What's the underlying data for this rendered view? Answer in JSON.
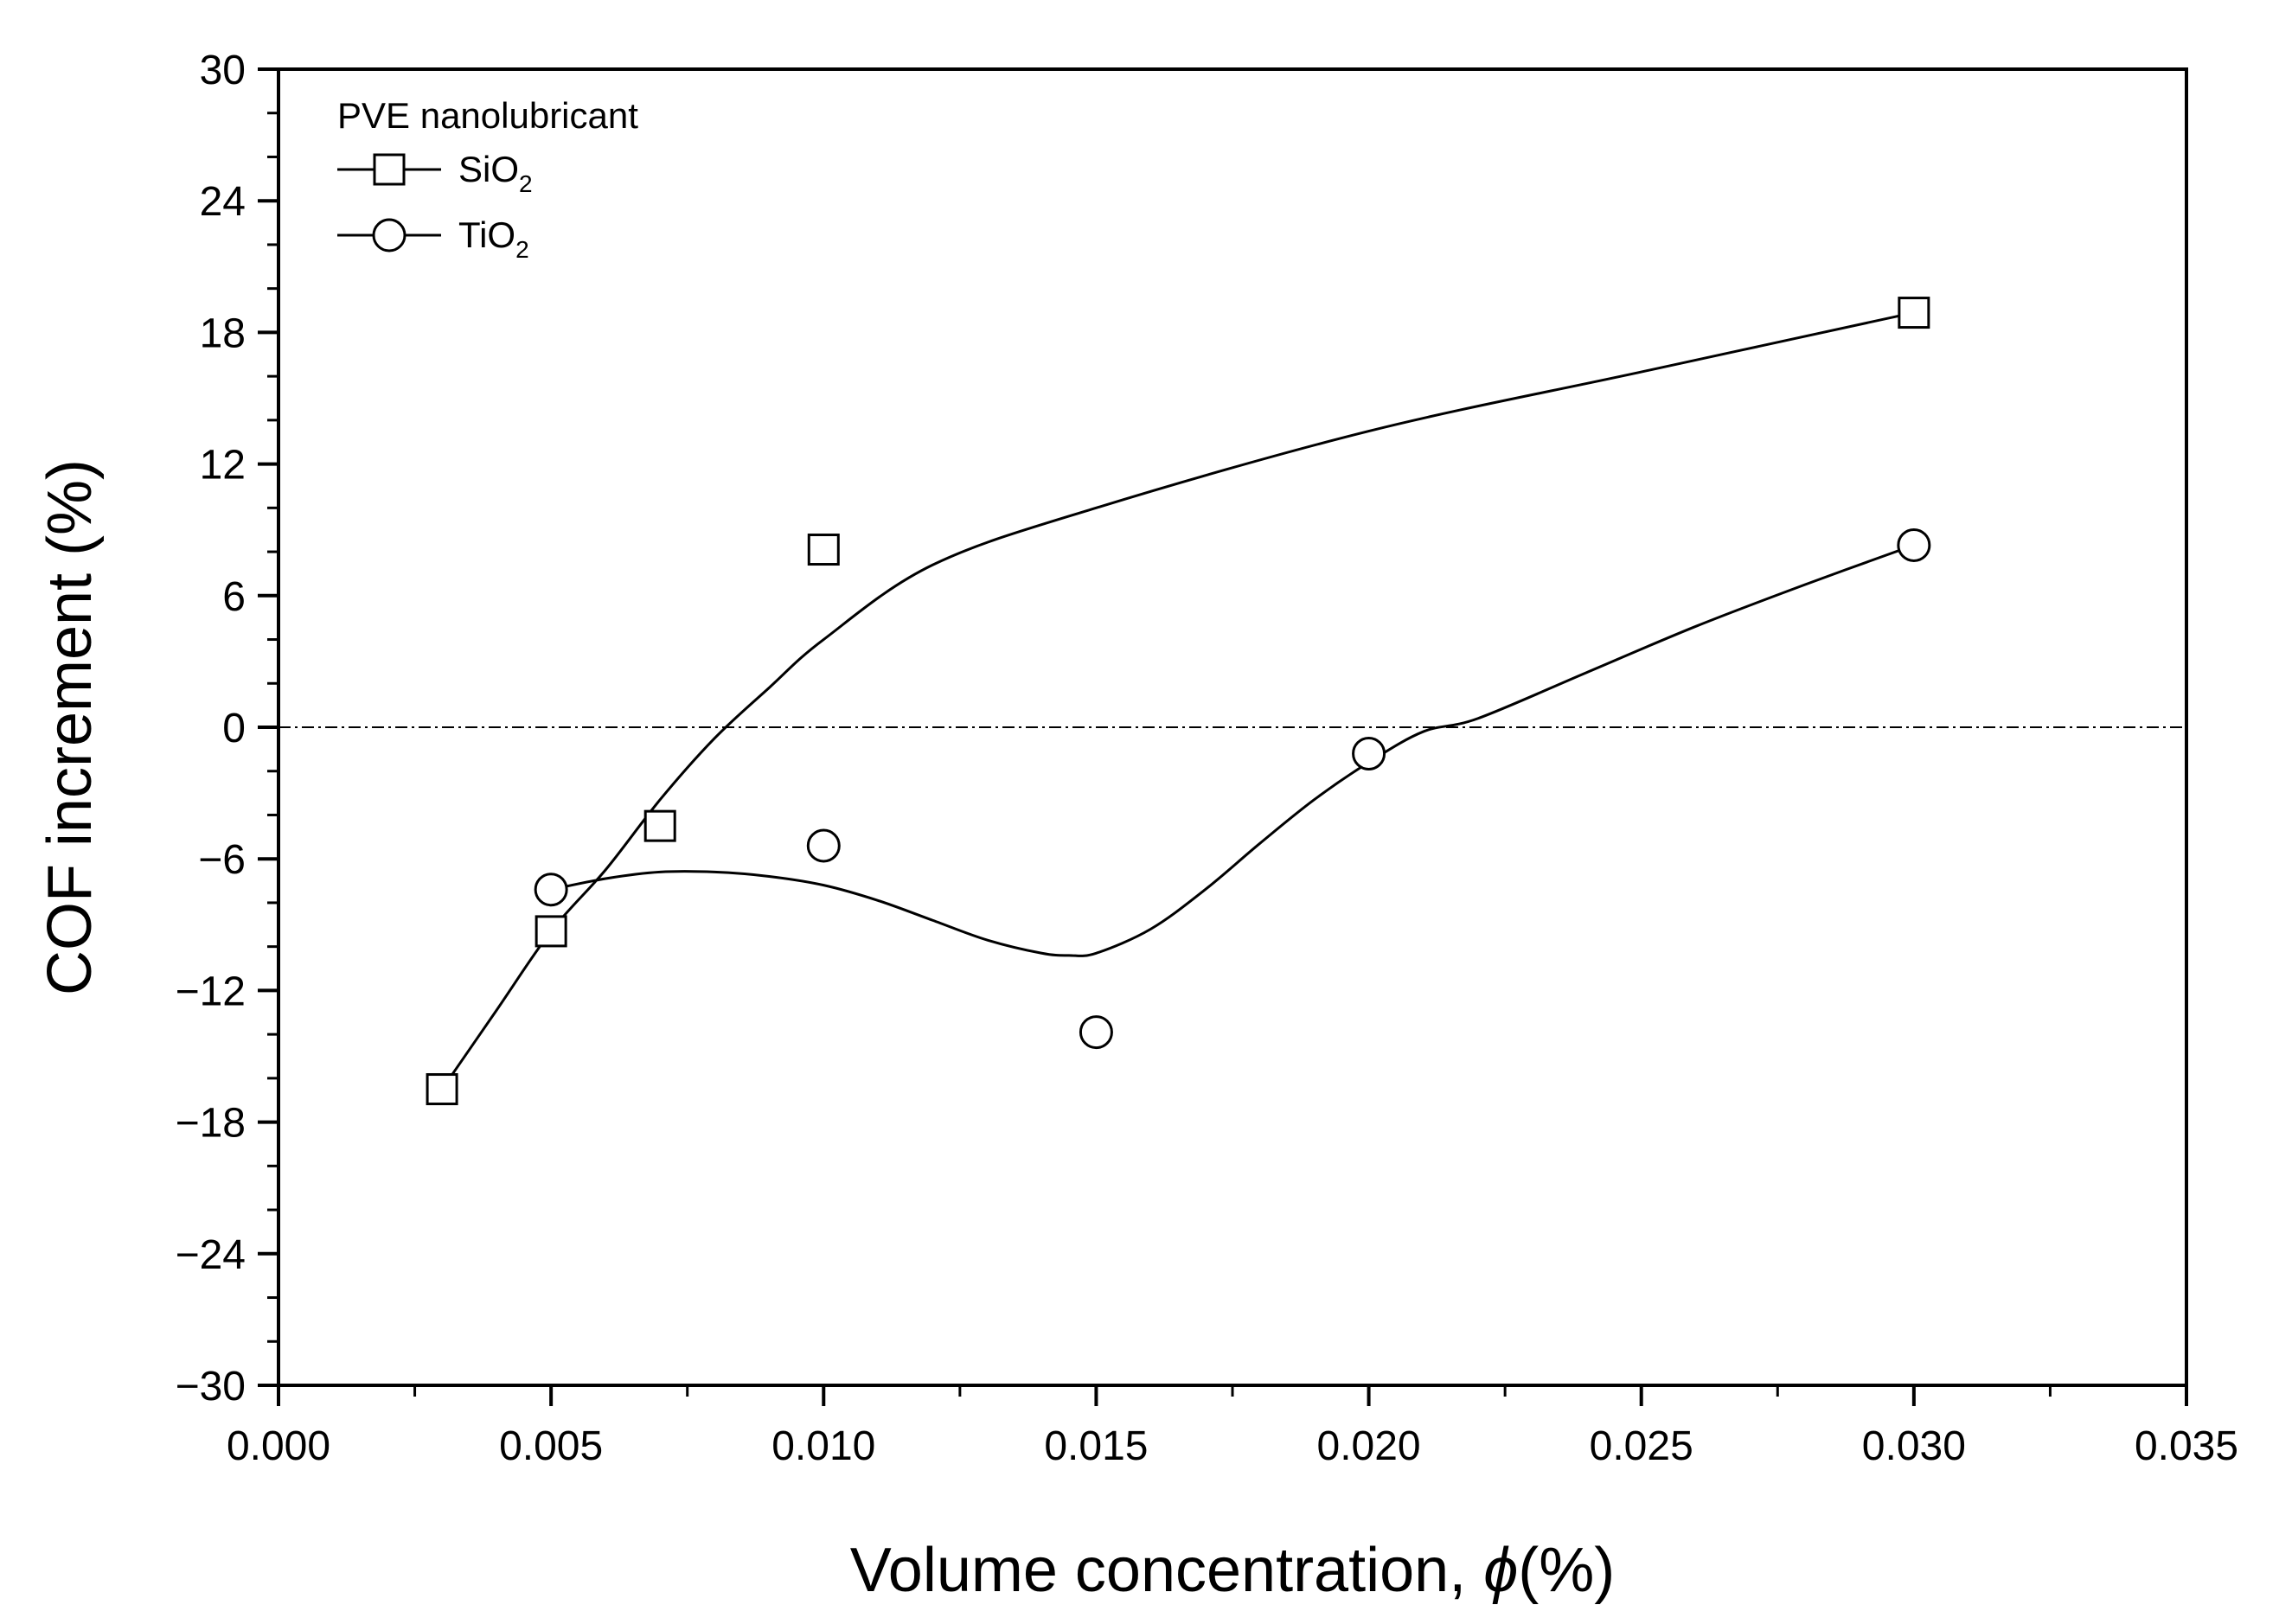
{
  "chart_data": {
    "type": "scatter",
    "title": "",
    "xlabel": "Volume concentration, ",
    "xlabel_symbol": "ϕ",
    "xlabel_suffix": "(%)",
    "ylabel": "COF increment (%)",
    "xlim": [
      0.0,
      0.035
    ],
    "ylim": [
      -30,
      30
    ],
    "x_ticks": [
      0.0,
      0.005,
      0.01,
      0.015,
      0.02,
      0.025,
      0.03,
      0.035
    ],
    "x_tick_labels": [
      "0.000",
      "0.005",
      "0.010",
      "0.015",
      "0.020",
      "0.025",
      "0.030",
      "0.035"
    ],
    "y_ticks": [
      -30,
      -24,
      -18,
      -12,
      -6,
      0,
      6,
      12,
      18,
      24,
      30
    ],
    "y_tick_labels": [
      "−30",
      "−24",
      "−18",
      "−12",
      "−6",
      "0",
      "6",
      "12",
      "18",
      "24",
      "30"
    ],
    "reference_line": {
      "y": 0,
      "style": "dash-dot"
    },
    "legend": {
      "title": "PVE nanolubricant",
      "placement": "top-left"
    },
    "series": [
      {
        "name": "SiO",
        "name_sub": "2",
        "marker": "square",
        "x": [
          0.003,
          0.005,
          0.007,
          0.01,
          0.03
        ],
        "y": [
          -16.5,
          -9.3,
          -4.5,
          8.1,
          18.9
        ],
        "fit_curve_x": [
          0.003,
          0.004,
          0.005,
          0.006,
          0.007,
          0.008,
          0.009,
          0.01,
          0.012,
          0.015,
          0.02,
          0.025,
          0.03
        ],
        "fit_curve_y": [
          -16.5,
          -12.9,
          -9.3,
          -6.5,
          -3.3,
          -0.5,
          1.8,
          4.0,
          7.4,
          10.0,
          13.5,
          16.2,
          18.9
        ]
      },
      {
        "name": "TiO",
        "name_sub": "2",
        "marker": "circle",
        "x": [
          0.005,
          0.01,
          0.015,
          0.02,
          0.03
        ],
        "y": [
          -7.4,
          -5.4,
          -13.9,
          -1.2,
          8.3
        ],
        "fit_curve_x": [
          0.005,
          0.006,
          0.007,
          0.008,
          0.009,
          0.01,
          0.011,
          0.012,
          0.013,
          0.014,
          0.0145,
          0.015,
          0.016,
          0.017,
          0.018,
          0.019,
          0.02,
          0.021,
          0.022,
          0.024,
          0.026,
          0.028,
          0.03
        ],
        "fit_curve_y": [
          -7.4,
          -6.9,
          -6.6,
          -6.6,
          -6.8,
          -7.2,
          -7.9,
          -8.8,
          -9.7,
          -10.3,
          -10.4,
          -10.3,
          -9.2,
          -7.4,
          -5.3,
          -3.3,
          -1.6,
          -0.2,
          0.4,
          2.5,
          4.6,
          6.5,
          8.3
        ]
      }
    ]
  }
}
